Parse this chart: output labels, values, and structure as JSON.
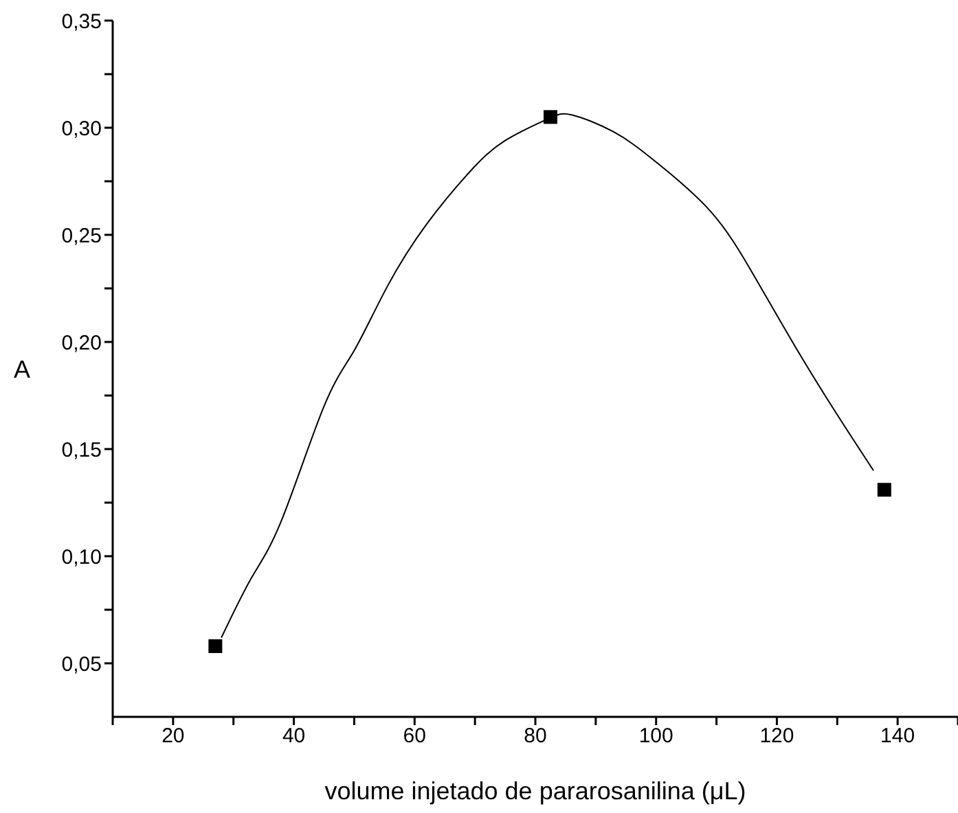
{
  "chart_data": {
    "type": "scatter",
    "xlabel": "volume injetado de pararosanilina (μL)",
    "ylabel": "A",
    "xlim": [
      10,
      150
    ],
    "ylim": [
      0.025,
      0.35
    ],
    "xticks": [
      {
        "value": 10,
        "label": null
      },
      20,
      {
        "value": 30,
        "label": null
      },
      40,
      {
        "value": 50,
        "label": null
      },
      60,
      {
        "value": 70,
        "label": null
      },
      80,
      {
        "value": 90,
        "label": null
      },
      100,
      {
        "value": 110,
        "label": null
      },
      120,
      {
        "value": 130,
        "label": null
      },
      140,
      {
        "value": 150,
        "label": null
      }
    ],
    "yticks": [
      {
        "value": 0.05,
        "label": "0,05"
      },
      {
        "value": 0.075,
        "label": null
      },
      {
        "value": 0.1,
        "label": "0,10"
      },
      {
        "value": 0.125,
        "label": null
      },
      {
        "value": 0.15,
        "label": "0,15"
      },
      {
        "value": 0.175,
        "label": null
      },
      {
        "value": 0.2,
        "label": "0,20"
      },
      {
        "value": 0.225,
        "label": null
      },
      {
        "value": 0.25,
        "label": "0,25"
      },
      {
        "value": 0.275,
        "label": null
      },
      {
        "value": 0.3,
        "label": "0,30"
      },
      {
        "value": 0.325,
        "label": null
      },
      {
        "value": 0.35,
        "label": "0,35"
      }
    ],
    "grid": false,
    "legend": false,
    "series": [
      {
        "color": "#000000",
        "marker": "square",
        "x": [
          27,
          82.5,
          137.8
        ],
        "values": [
          0.058,
          0.305,
          0.131
        ]
      },
      {
        "type": "line",
        "color": "#000000",
        "marker": "none",
        "line_style": "solid",
        "x": [
          28,
          33,
          38,
          45,
          50,
          55.5,
          62,
          69,
          75,
          82,
          86,
          93,
          100,
          109,
          116,
          123,
          130,
          136
        ],
        "values": [
          0.062,
          0.09,
          0.117,
          0.17,
          0.196,
          0.226,
          0.255,
          0.279,
          0.294,
          0.304,
          0.306,
          0.298,
          0.284,
          0.261,
          0.232,
          0.198,
          0.166,
          0.14
        ]
      }
    ]
  }
}
